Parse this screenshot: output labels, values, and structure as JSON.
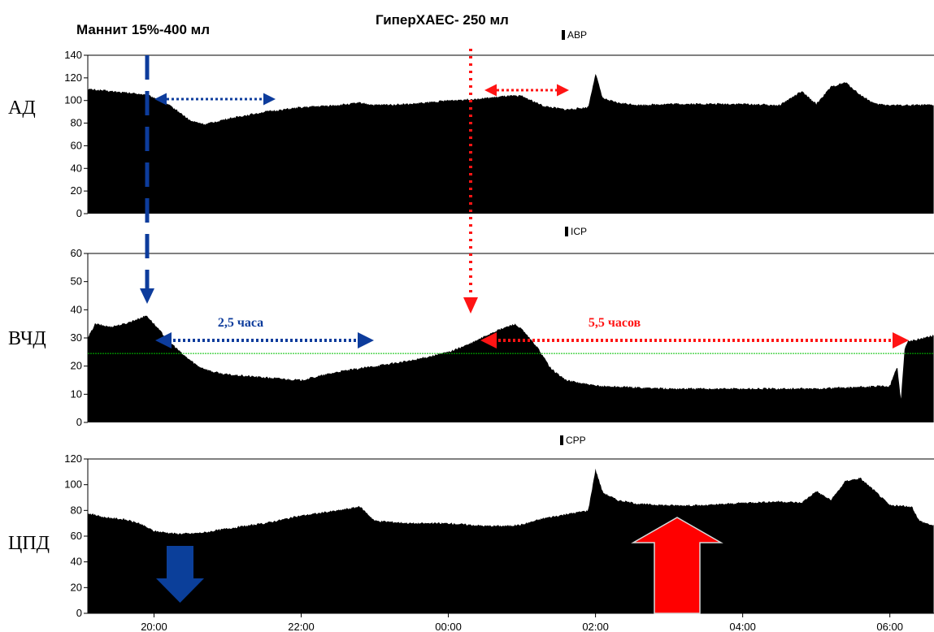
{
  "labels": {
    "mannitol": "Маннит 15%-400 мл",
    "hyperhaes": "ГиперХАЕС- 250 мл",
    "mannitol_effect": "2,5 часа",
    "hyperhaes_effect": "5,5 часов"
  },
  "colors": {
    "trace": "#000000",
    "mannitol": "#0d3c9c",
    "hyperhaes": "#ff1414",
    "threshold": "#00c000",
    "down_arrow": "#0b3f9a",
    "up_arrow": "#ff0000"
  },
  "chart_data": {
    "type": "area",
    "x_ticks": [
      "20:00",
      "22:00",
      "00:00",
      "02:00",
      "04:00",
      "06:00"
    ],
    "x_domain_hours": [
      19.1,
      30.6
    ],
    "threshold_icp": 24.5,
    "panels": [
      {
        "key": "abp",
        "side_label": "АД",
        "legend": "ABP",
        "ylim": [
          0,
          140
        ],
        "yticks": [
          0,
          20,
          40,
          60,
          80,
          100,
          120,
          140
        ],
        "x": [
          19.1,
          19.3,
          19.6,
          19.8,
          19.95,
          20.1,
          20.3,
          20.5,
          20.7,
          21.0,
          21.5,
          22.0,
          22.5,
          22.8,
          23.0,
          23.5,
          24.0,
          24.5,
          24.8,
          25.0,
          25.3,
          25.6,
          25.9,
          26.0,
          26.1,
          26.3,
          26.6,
          27.0,
          27.5,
          28.0,
          28.5,
          28.8,
          29.0,
          29.2,
          29.4,
          29.6,
          29.8,
          30.0,
          30.3,
          30.6
        ],
        "values": [
          110,
          109,
          107,
          106,
          104,
          100,
          92,
          82,
          79,
          84,
          90,
          94,
          96,
          98,
          96,
          97,
          100,
          102,
          104,
          104,
          95,
          92,
          94,
          124,
          102,
          98,
          96,
          97,
          97,
          97,
          96,
          108,
          97,
          112,
          116,
          105,
          97,
          96,
          96,
          96
        ]
      },
      {
        "key": "icp",
        "side_label": "ВЧД",
        "legend": "ICP",
        "ylim": [
          0,
          60
        ],
        "yticks": [
          0,
          10,
          20,
          30,
          40,
          50,
          60
        ],
        "x": [
          19.1,
          19.2,
          19.4,
          19.6,
          19.8,
          19.9,
          20.0,
          20.2,
          20.4,
          20.6,
          20.8,
          21.0,
          21.5,
          22.0,
          22.5,
          23.0,
          23.5,
          24.0,
          24.3,
          24.6,
          24.8,
          24.9,
          25.0,
          25.2,
          25.4,
          25.6,
          26.0,
          27.0,
          28.0,
          29.0,
          30.0,
          30.1,
          30.15,
          30.2,
          30.25,
          30.3,
          30.6
        ],
        "values": [
          30,
          35,
          34,
          35,
          37,
          38,
          35,
          29,
          24,
          20,
          18,
          17,
          16,
          15,
          18,
          20,
          22,
          25,
          28,
          32,
          34,
          35,
          33,
          27,
          19,
          15,
          13,
          12,
          12,
          12,
          13,
          20,
          8,
          26,
          29,
          29,
          31
        ]
      },
      {
        "key": "cpp",
        "side_label": "ЦПД",
        "legend": "CPP",
        "ylim": [
          0,
          120
        ],
        "yticks": [
          0,
          20,
          40,
          60,
          80,
          100,
          120
        ],
        "x": [
          19.1,
          19.3,
          19.6,
          19.8,
          20.0,
          20.3,
          20.5,
          20.7,
          21.0,
          21.5,
          22.0,
          22.5,
          22.8,
          23.0,
          23.5,
          24.0,
          24.5,
          24.8,
          25.0,
          25.3,
          25.6,
          25.9,
          26.0,
          26.1,
          26.3,
          26.6,
          27.0,
          27.5,
          28.0,
          28.5,
          28.8,
          29.0,
          29.2,
          29.4,
          29.6,
          29.8,
          30.0,
          30.3,
          30.4,
          30.6
        ],
        "values": [
          78,
          75,
          73,
          70,
          64,
          62,
          62,
          63,
          66,
          70,
          76,
          80,
          83,
          72,
          70,
          70,
          68,
          68,
          69,
          74,
          77,
          80,
          112,
          94,
          88,
          85,
          84,
          84,
          86,
          87,
          86,
          95,
          88,
          103,
          105,
          95,
          84,
          83,
          72,
          68
        ]
      }
    ]
  }
}
